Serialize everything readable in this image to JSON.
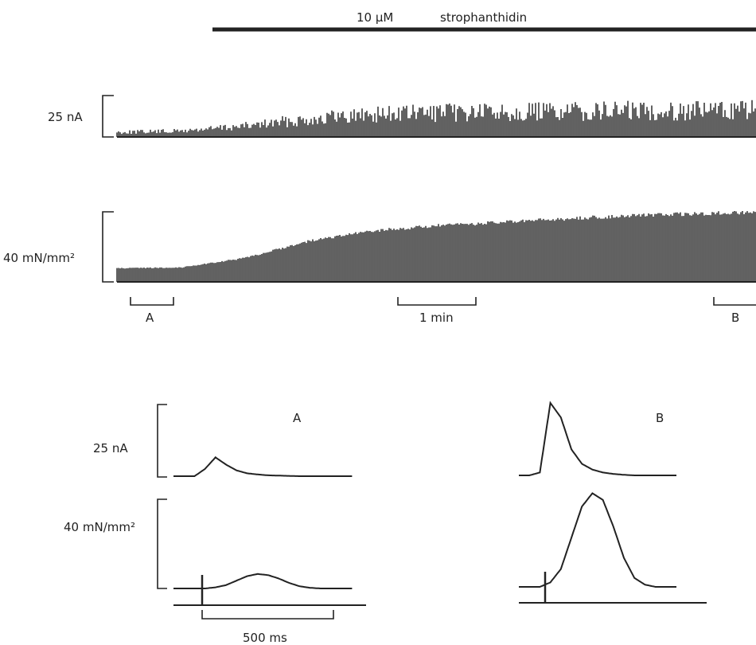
{
  "figure": {
    "drug_label": "10 μM",
    "drug_name": "strophanthidin",
    "top_current_scale": "25 nA",
    "top_tension_scale": "40 mN/mm²",
    "time_scale": "1 min",
    "marker_a": "A",
    "marker_b": "B",
    "panel_a_title": "A",
    "panel_b_title": "B",
    "panel_current_scale": "25 nA",
    "panel_tension_scale": "40 mN/mm²",
    "panel_time_scale": "500 ms"
  },
  "chart_data": [
    {
      "type": "area",
      "title": "",
      "series": [
        {
          "name": "",
          "unit": "nA",
          "x_min": [
            0,
            1,
            2,
            3,
            4,
            5,
            6,
            7,
            8,
            9,
            10
          ],
          "values": [
            4,
            5,
            9,
            15,
            19,
            20,
            21,
            21,
            22,
            22,
            23
          ]
        },
        {
          "name": "",
          "unit": "mN/mm²",
          "x_min": [
            0,
            1,
            2,
            3,
            4,
            5,
            6,
            7,
            8,
            9,
            10
          ],
          "values": [
            8,
            8.5,
            14,
            24,
            30,
            33,
            35,
            37,
            39,
            40,
            41
          ]
        }
      ],
      "scale_bars": {
        "current_nA": 25,
        "tension_mN_mm2": 40,
        "time_min": 1
      },
      "grid": false,
      "legend": "none"
    },
    {
      "type": "line",
      "title": "A",
      "x_ms": [
        0,
        40,
        80,
        120,
        160,
        200,
        240,
        280,
        320,
        360,
        400,
        440,
        480,
        520,
        560,
        600,
        640,
        680
      ],
      "series": [
        {
          "name": "",
          "unit": "nA",
          "values": [
            0,
            0,
            0,
            2.5,
            6.5,
            4,
            2,
            1,
            0.6,
            0.3,
            0.2,
            0.1,
            0,
            0,
            0,
            0,
            0,
            0
          ]
        },
        {
          "name": "",
          "unit": "mN/mm²",
          "values": [
            0,
            0,
            0,
            0,
            0.5,
            1.5,
            3.5,
            5.5,
            6.5,
            6,
            4.5,
            2.5,
            1,
            0.3,
            0,
            0,
            0,
            0
          ]
        }
      ],
      "scale_bars": {
        "current_nA": 25,
        "tension_mN_mm2": 40,
        "time_ms": 500
      }
    },
    {
      "type": "line",
      "title": "B",
      "x_ms": [
        0,
        40,
        80,
        120,
        160,
        200,
        240,
        280,
        320,
        360,
        400,
        440,
        480,
        520,
        560,
        600
      ],
      "series": [
        {
          "name": "",
          "unit": "nA",
          "values": [
            0,
            0,
            1,
            25,
            20,
            9,
            4,
            2,
            1,
            0.5,
            0.2,
            0,
            0,
            0,
            0,
            0
          ]
        },
        {
          "name": "",
          "unit": "mN/mm²",
          "values": [
            0,
            0,
            0,
            2,
            8,
            22,
            36,
            42,
            39,
            27,
            13,
            4,
            1,
            0,
            0,
            0
          ]
        }
      ],
      "scale_bars": {
        "current_nA": 25,
        "tension_mN_mm2": 40,
        "time_ms": 500
      }
    }
  ]
}
